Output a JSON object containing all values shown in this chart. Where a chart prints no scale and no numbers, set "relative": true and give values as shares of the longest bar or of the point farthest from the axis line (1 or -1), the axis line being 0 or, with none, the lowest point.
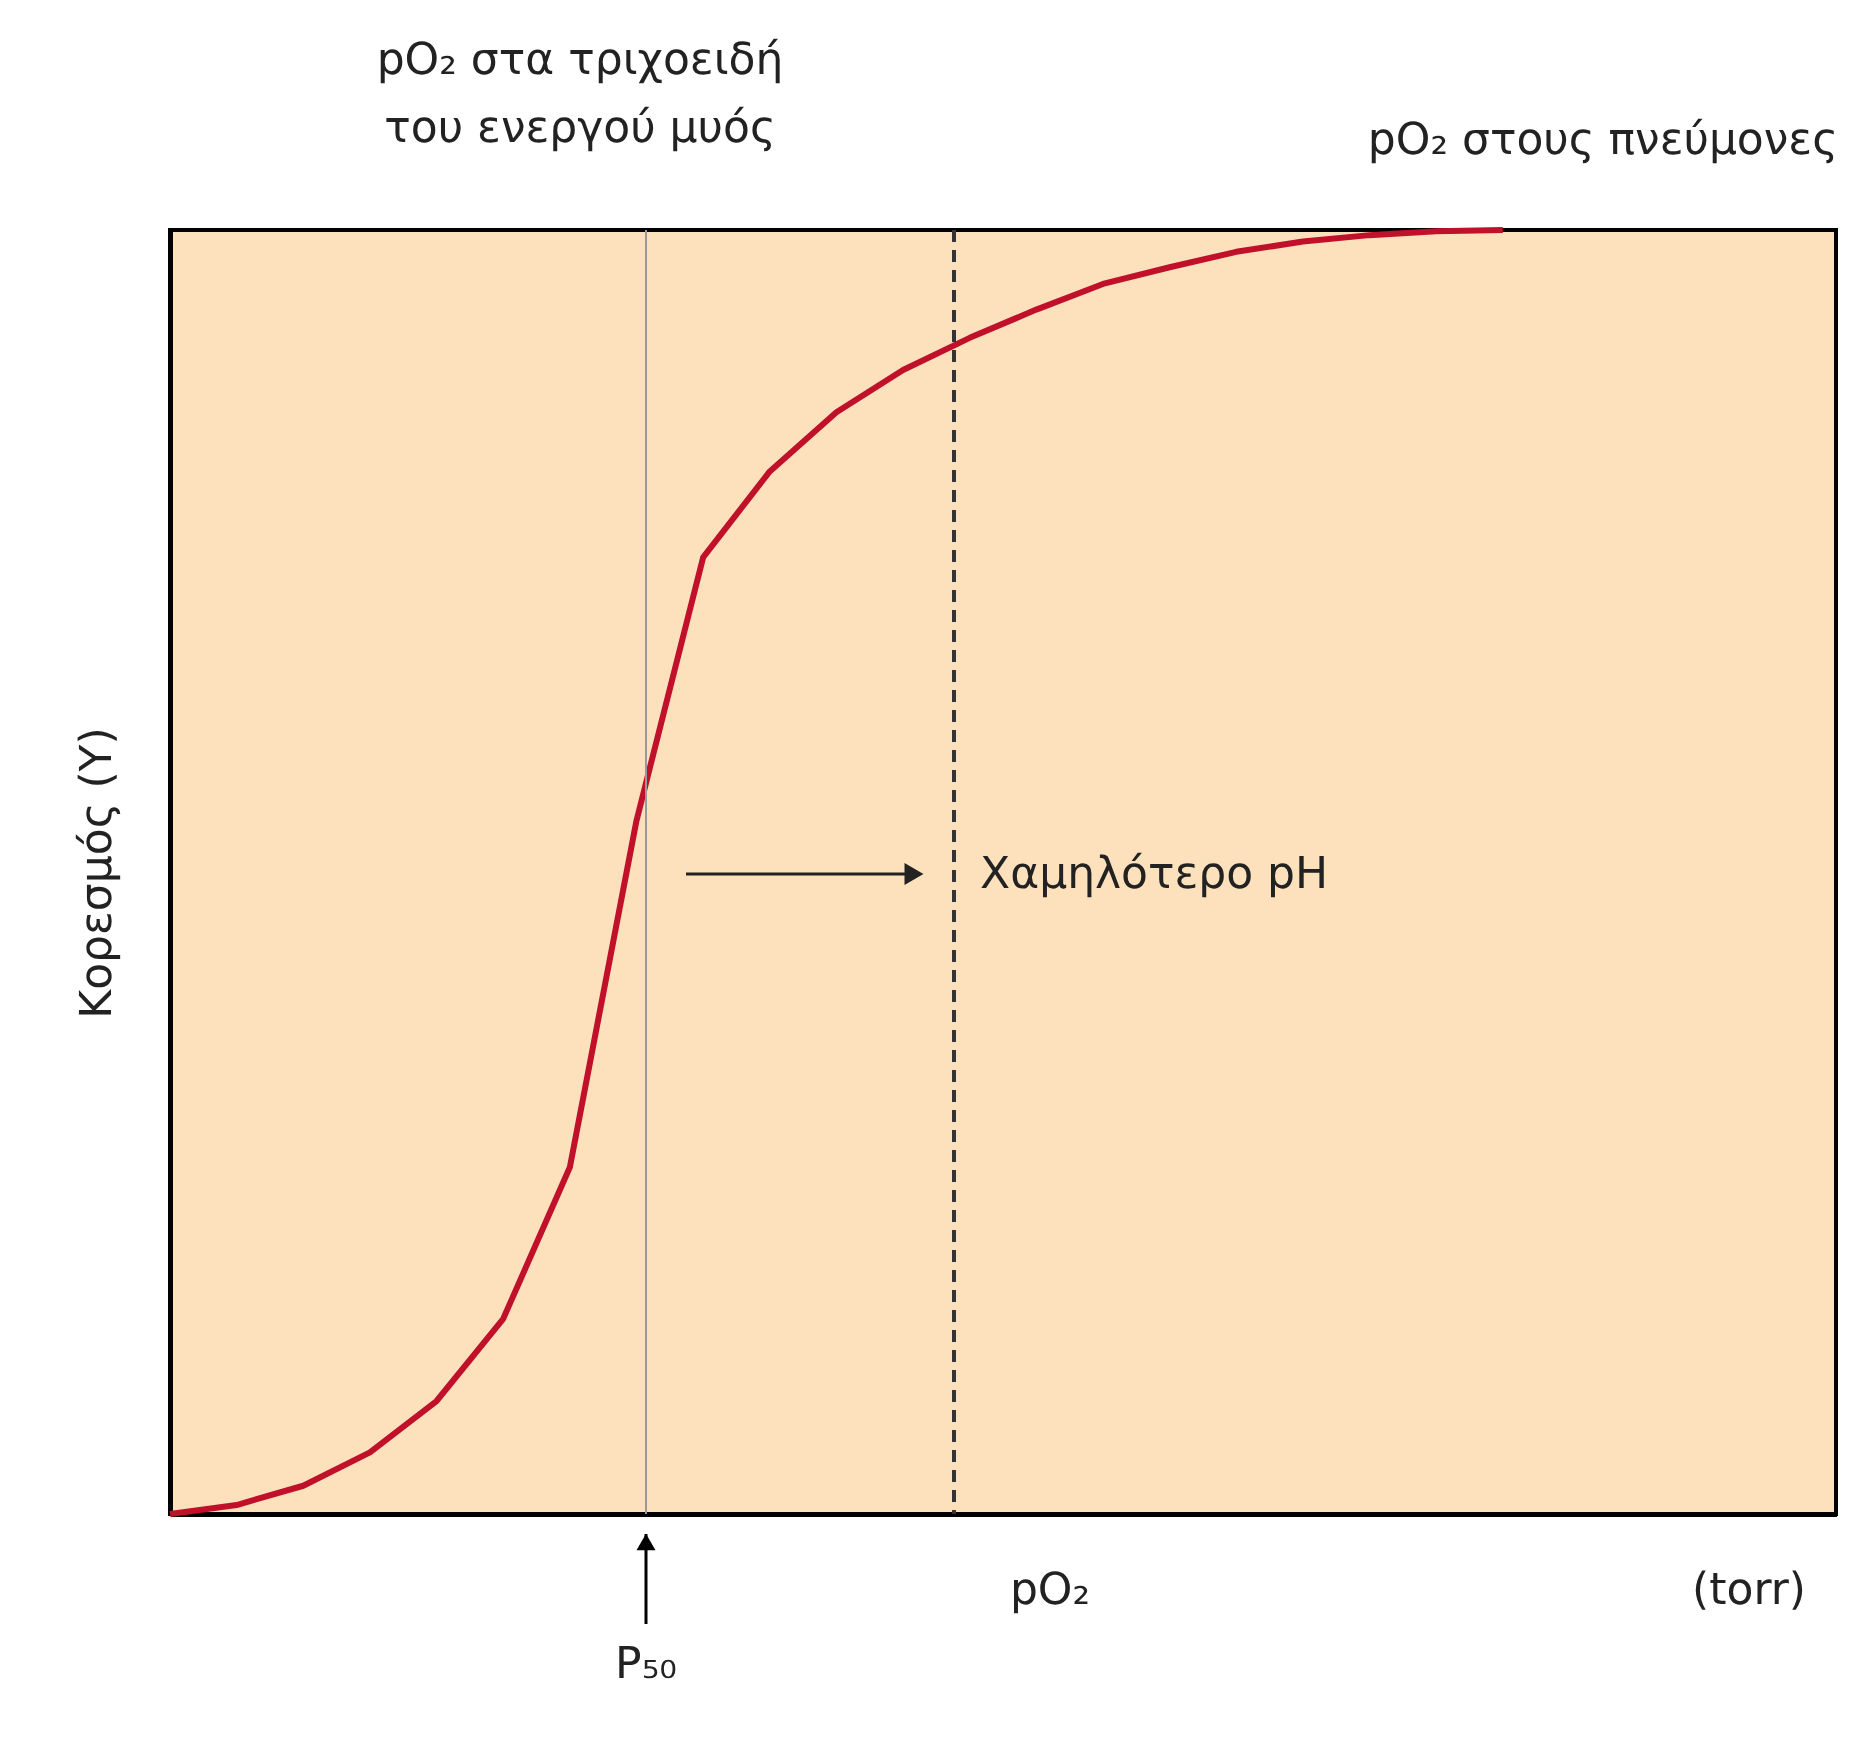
{
  "chart_data": {
    "type": "line",
    "relative": true,
    "grid": false,
    "line_style": "solid",
    "marker": "none",
    "ylabel": "Κορεσμός (Y)",
    "xlabel": "(torr)",
    "categories": [
      null,
      null,
      null,
      null,
      null,
      null,
      null,
      null,
      null,
      null,
      null,
      null,
      null,
      null,
      null,
      null,
      null,
      null,
      null,
      null,
      null,
      null,
      null,
      null,
      null,
      null
    ],
    "series": [
      {
        "color": "#c0102a",
        "values": [
          0,
          0.007,
          0.022,
          0.048,
          0.088,
          0.152,
          0.27,
          0.54,
          0.745,
          0.812,
          0.858,
          0.891,
          0.916,
          0.938,
          0.958,
          0.971,
          0.983,
          0.991,
          0.996,
          0.999,
          1.0,
          null,
          null,
          null,
          null,
          null
        ]
      }
    ],
    "annotations": [
      "pO₂ στα τριχοειδή\nτου ενεργού μυός",
      "pO₂ στους πνεύμονες",
      "Χαμηλότερο pH",
      "pO₂",
      "P₅₀"
    ]
  }
}
